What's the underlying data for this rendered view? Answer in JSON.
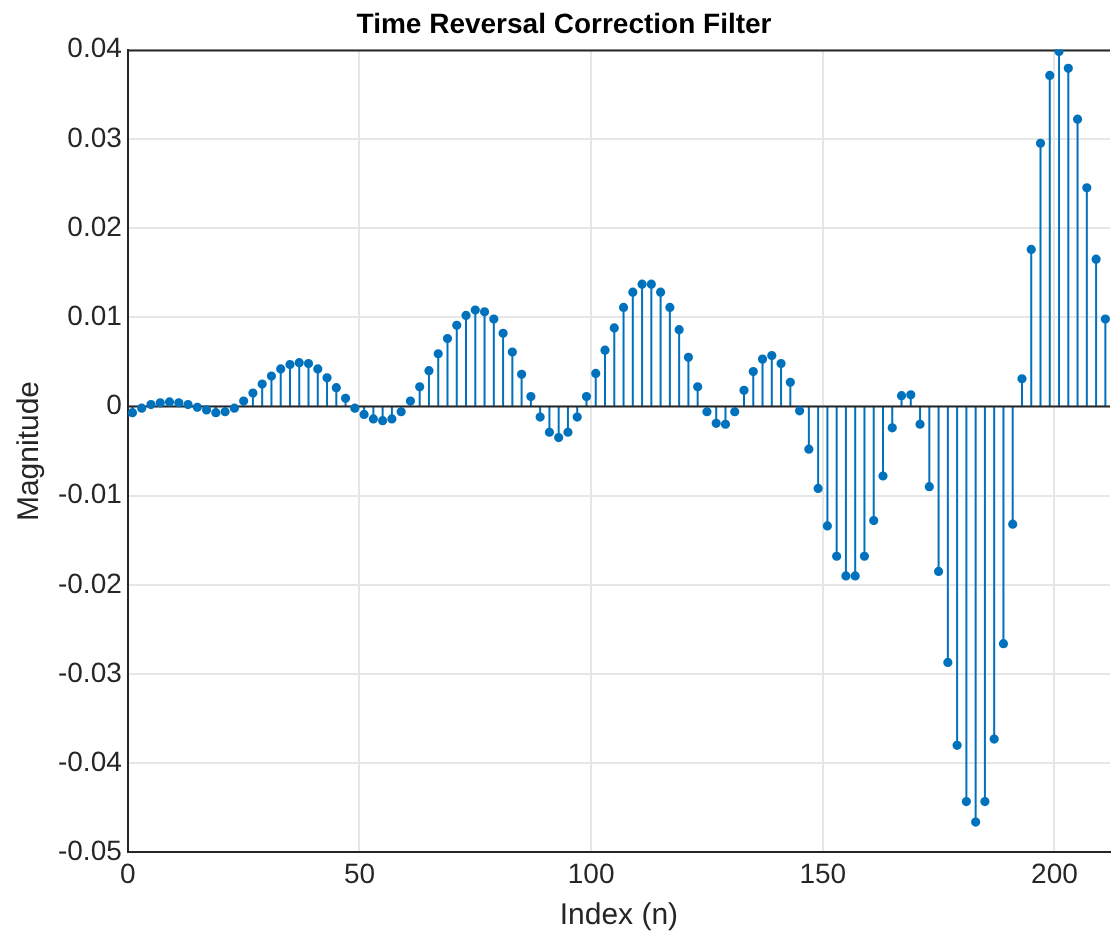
{
  "chart_data": {
    "type": "lollipop",
    "title": "Time Reversal Correction Filter",
    "xlabel": "Index (n)",
    "ylabel": "Magnitude",
    "x": [
      1,
      3,
      5,
      7,
      9,
      11,
      13,
      15,
      17,
      19,
      21,
      23,
      25,
      27,
      29,
      31,
      33,
      35,
      37,
      39,
      41,
      43,
      45,
      47,
      49,
      51,
      53,
      55,
      57,
      59,
      61,
      63,
      65,
      67,
      69,
      71,
      73,
      75,
      77,
      79,
      81,
      83,
      85,
      87,
      89,
      91,
      93,
      95,
      97,
      99,
      101,
      103,
      105,
      107,
      109,
      111,
      113,
      115,
      117,
      119,
      121,
      123,
      125,
      127,
      129,
      131,
      133,
      135,
      137,
      139,
      141,
      143,
      145,
      147,
      149,
      151,
      153,
      155,
      157,
      159,
      161,
      163,
      165,
      167,
      169,
      171,
      173,
      175,
      177,
      179,
      181,
      183,
      185,
      187,
      189,
      191,
      193,
      195,
      197,
      199,
      201,
      203,
      205,
      207,
      209,
      211
    ],
    "series": [
      {
        "color": "#0072bd",
        "values": [
          -0.0007,
          -0.0002,
          0.0002,
          0.0004,
          0.0005,
          0.0004,
          0.0002,
          -0.0001,
          -0.0004,
          -0.0007,
          -0.0006,
          -0.0002,
          0.0006,
          0.0015,
          0.0025,
          0.0034,
          0.0042,
          0.0047,
          0.0049,
          0.0048,
          0.0042,
          0.0032,
          0.0021,
          0.0009,
          -0.0002,
          -0.0009,
          -0.0014,
          -0.0016,
          -0.0014,
          -0.0006,
          0.0006,
          0.0022,
          0.004,
          0.0059,
          0.0076,
          0.0091,
          0.0102,
          0.0108,
          0.0106,
          0.0098,
          0.0082,
          0.0061,
          0.0036,
          0.0011,
          -0.0012,
          -0.0029,
          -0.0035,
          -0.0029,
          -0.0012,
          0.0011,
          0.0037,
          0.0063,
          0.0088,
          0.0111,
          0.0128,
          0.0137,
          0.0137,
          0.0128,
          0.0111,
          0.0086,
          0.0055,
          0.0022,
          -0.0006,
          -0.0019,
          -0.002,
          -0.0006,
          0.0018,
          0.0039,
          0.0053,
          0.0057,
          0.0048,
          0.0027,
          -0.0005,
          -0.0048,
          -0.0092,
          -0.0134,
          -0.0168,
          -0.019,
          -0.019,
          -0.0168,
          -0.0128,
          -0.0078,
          -0.0024,
          0.0012,
          0.0013,
          -0.002,
          -0.009,
          -0.0185,
          -0.0287,
          -0.038,
          -0.0443,
          -0.0466,
          -0.0443,
          -0.0373,
          -0.0266,
          -0.0132,
          0.0031,
          0.0176,
          0.0295,
          0.0371,
          0.0398,
          0.0379,
          0.0322,
          0.0245,
          0.0165,
          0.0098
        ]
      }
    ],
    "xlim": [
      0,
      212
    ],
    "xticks": [
      0,
      50,
      100,
      150,
      200
    ],
    "ylim": [
      -0.05,
      0.04
    ],
    "yticks": [
      -0.05,
      -0.04,
      -0.03,
      -0.02,
      -0.01,
      0,
      0.01,
      0.02,
      0.03,
      0.04
    ],
    "grid": true,
    "marker": "circle",
    "legend": false
  }
}
